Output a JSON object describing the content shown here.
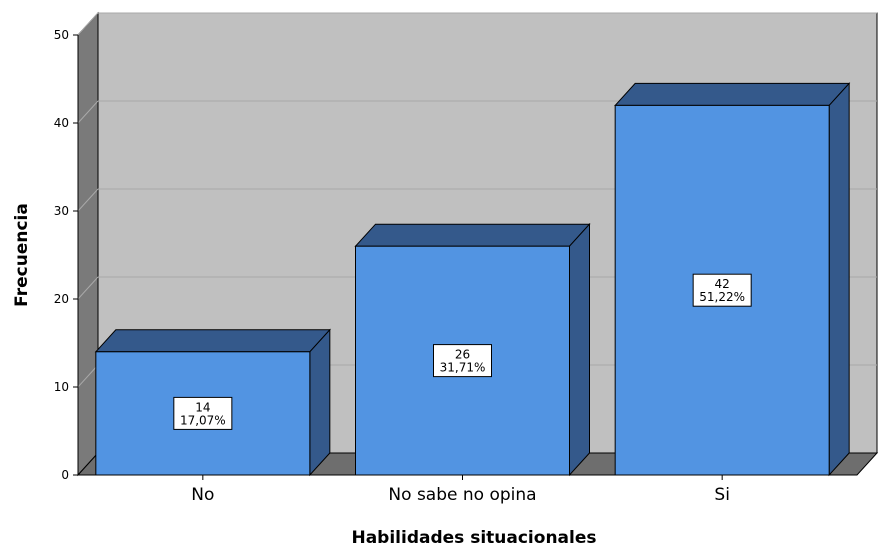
{
  "chart_data": {
    "type": "bar",
    "categories": [
      "No",
      "No sabe no opina",
      "Si"
    ],
    "values": [
      14,
      26,
      42
    ],
    "percent_labels": [
      "17,07%",
      "31,71%",
      "51,22%"
    ],
    "xlabel": "Habilidades situacionales",
    "ylabel": "Frecuencia",
    "ylim": [
      0,
      50
    ],
    "yticks": [
      "0",
      "10",
      "20",
      "30",
      "40",
      "50"
    ],
    "grid": true,
    "three_d": true,
    "colors": {
      "bar_front": "#5294e2",
      "bar_top": "#34598b",
      "bar_side": "#34598b",
      "plot_back": "#c0c0c0",
      "plot_floor": "#6e6e6e",
      "plot_left_wall": "#7a7a7a",
      "gridline": "#a9a9a9"
    }
  }
}
